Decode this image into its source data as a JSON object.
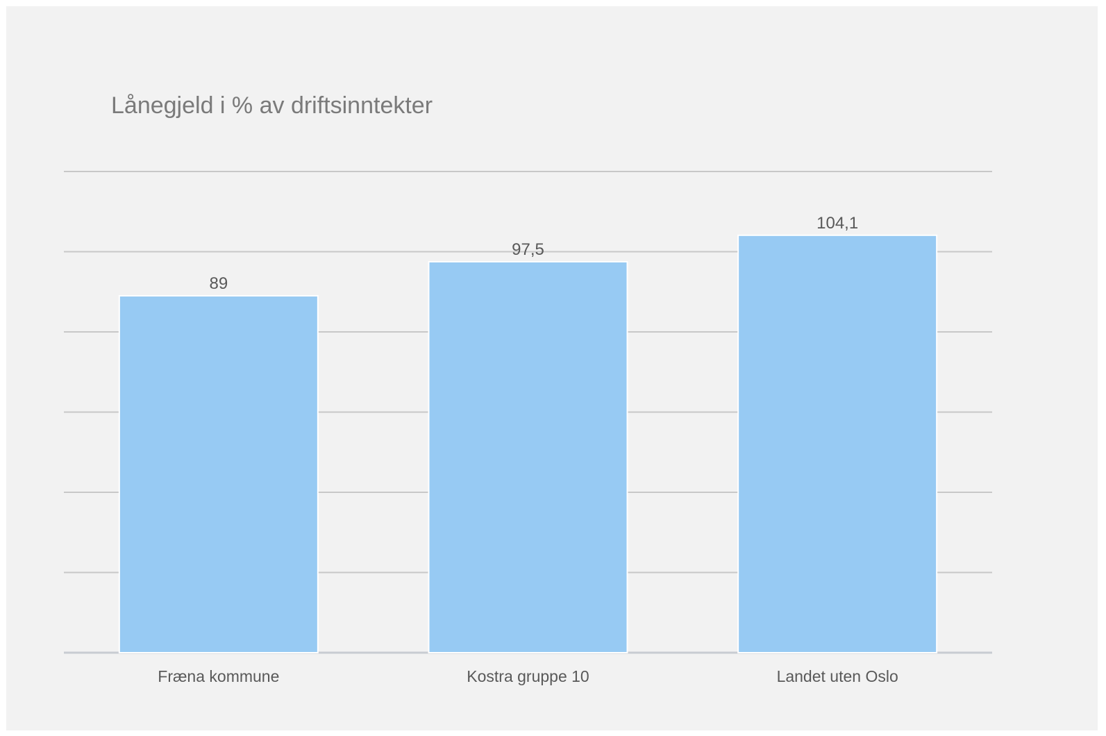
{
  "chart_data": {
    "type": "bar",
    "title": "Lånegjeld i % av driftsinntekter",
    "categories": [
      "Fræna kommune",
      "Kostra gruppe 10",
      "Landet uten Oslo"
    ],
    "values": [
      89,
      97.5,
      104.1
    ],
    "value_labels": [
      "89",
      "97,5",
      "104,1"
    ],
    "xlabel": "",
    "ylabel": "",
    "ylim": [
      0,
      120
    ],
    "grid": true,
    "gridline_values": [
      20,
      40,
      60,
      80,
      100,
      120
    ],
    "y_tick_labels_visible": false,
    "legend": "none",
    "colors": {
      "bar": "#97caf3",
      "bar_border": "#ffffff",
      "grid": "#c8c8c8",
      "baseline": "#c8ccd2",
      "background": "#f2f2f2",
      "title": "#7a7a7a",
      "label": "#595959"
    }
  }
}
